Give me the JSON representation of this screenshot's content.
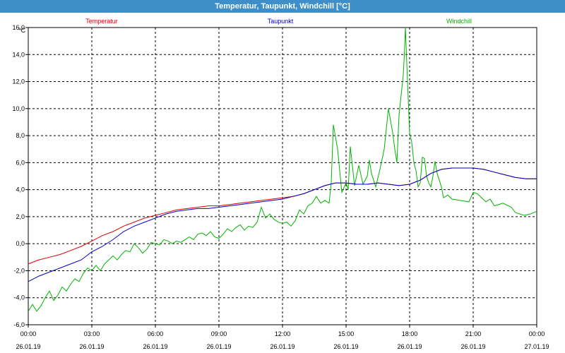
{
  "window": {
    "title": "Temperatur, Taupunkt, Windchill [°C]"
  },
  "colors": {
    "temperatur": "#dd0000",
    "taupunkt": "#0000cc",
    "windchill": "#00b400",
    "titlebar": "#3d8ec9"
  },
  "chart_data": {
    "type": "line",
    "title": "Temperatur, Taupunkt, Windchill [°C]",
    "yunit": "°C",
    "ylim": [
      -6.0,
      16.0
    ],
    "yticks": [
      "-6,0",
      "-4,0",
      "-2,0",
      "0,0",
      "2,0",
      "4,0",
      "6,0",
      "8,0",
      "10,0",
      "12,0",
      "14,0",
      "16,0"
    ],
    "xlim": [
      "26.01.19 00:00",
      "27.01.19 00:00"
    ],
    "xticks": [
      {
        "time": "00:00",
        "date": "26.01.19"
      },
      {
        "time": "03:00",
        "date": "26.01.19"
      },
      {
        "time": "06:00",
        "date": "26.01.19"
      },
      {
        "time": "09:00",
        "date": "26.01.19"
      },
      {
        "time": "12:00",
        "date": "26.01.19"
      },
      {
        "time": "15:00",
        "date": "26.01.19"
      },
      {
        "time": "18:00",
        "date": "26.01.19"
      },
      {
        "time": "21:00",
        "date": "26.01.19"
      },
      {
        "time": "00:00",
        "date": "27.01.19"
      }
    ],
    "grid": true,
    "legend": "top",
    "series": [
      {
        "name": "Temperatur",
        "color": "#dd0000",
        "points": [
          [
            0,
            -1.5
          ],
          [
            0.5,
            -1.2
          ],
          [
            1,
            -1
          ],
          [
            1.5,
            -0.8
          ],
          [
            2,
            -0.5
          ],
          [
            2.5,
            -0.2
          ],
          [
            3,
            0.2
          ],
          [
            3.5,
            0.6
          ],
          [
            4,
            0.9
          ],
          [
            4.5,
            1.3
          ],
          [
            5,
            1.6
          ],
          [
            5.5,
            1.9
          ],
          [
            6,
            2.1
          ],
          [
            6.5,
            2.3
          ],
          [
            7,
            2.5
          ],
          [
            7.5,
            2.6
          ],
          [
            8,
            2.7
          ],
          [
            8.5,
            2.8
          ],
          [
            9,
            2.8
          ],
          [
            9.5,
            2.9
          ],
          [
            10,
            3
          ],
          [
            10.5,
            3.1
          ],
          [
            11,
            3.2
          ],
          [
            11.5,
            3.3
          ],
          [
            12,
            3.4
          ],
          [
            12.5,
            3.5
          ],
          [
            13,
            3.7
          ],
          [
            13.5,
            4
          ],
          [
            14,
            4.3
          ],
          [
            14.5,
            4.5
          ],
          [
            15,
            4.5
          ],
          [
            15.5,
            4.4
          ],
          [
            16,
            4.4
          ],
          [
            16.5,
            4.5
          ],
          [
            17,
            4.4
          ],
          [
            17.5,
            4.3
          ],
          [
            18,
            4.4
          ],
          [
            18.5,
            4.7
          ],
          [
            19,
            5.2
          ],
          [
            19.5,
            5.5
          ],
          [
            20,
            5.6
          ],
          [
            20.5,
            5.6
          ],
          [
            21,
            5.6
          ],
          [
            21.5,
            5.5
          ],
          [
            22,
            5.3
          ],
          [
            22.5,
            5.1
          ],
          [
            23,
            4.9
          ],
          [
            23.5,
            4.8
          ],
          [
            24,
            4.8
          ]
        ]
      },
      {
        "name": "Taupunkt",
        "color": "#0000cc",
        "points": [
          [
            0,
            -2.8
          ],
          [
            0.5,
            -2.4
          ],
          [
            1,
            -2.1
          ],
          [
            1.5,
            -1.8
          ],
          [
            2,
            -1.5
          ],
          [
            2.5,
            -1.2
          ],
          [
            3,
            -0.6
          ],
          [
            3.5,
            -0.2
          ],
          [
            4,
            0.3
          ],
          [
            4.5,
            0.9
          ],
          [
            5,
            1.3
          ],
          [
            5.5,
            1.6
          ],
          [
            6,
            1.9
          ],
          [
            6.5,
            2.2
          ],
          [
            7,
            2.4
          ],
          [
            7.5,
            2.5
          ],
          [
            8,
            2.6
          ],
          [
            8.5,
            2.6
          ],
          [
            9,
            2.7
          ],
          [
            9.5,
            2.8
          ],
          [
            10,
            2.9
          ],
          [
            10.5,
            3
          ],
          [
            11,
            3.1
          ],
          [
            11.5,
            3.2
          ],
          [
            12,
            3.3
          ],
          [
            12.5,
            3.5
          ],
          [
            13,
            3.7
          ],
          [
            13.5,
            4
          ],
          [
            14,
            4.3
          ],
          [
            14.5,
            4.5
          ],
          [
            15,
            4.5
          ],
          [
            15.5,
            4.4
          ],
          [
            16,
            4.4
          ],
          [
            16.5,
            4.5
          ],
          [
            17,
            4.4
          ],
          [
            17.5,
            4.3
          ],
          [
            18,
            4.4
          ],
          [
            18.5,
            4.7
          ],
          [
            19,
            5.2
          ],
          [
            19.5,
            5.5
          ],
          [
            20,
            5.6
          ],
          [
            20.5,
            5.6
          ],
          [
            21,
            5.6
          ],
          [
            21.5,
            5.5
          ],
          [
            22,
            5.3
          ],
          [
            22.5,
            5.1
          ],
          [
            23,
            4.9
          ],
          [
            23.5,
            4.8
          ],
          [
            24,
            4.8
          ]
        ]
      },
      {
        "name": "Windchill",
        "color": "#00b400",
        "points": [
          [
            0,
            -5
          ],
          [
            0.2,
            -4.5
          ],
          [
            0.4,
            -5
          ],
          [
            0.6,
            -4.6
          ],
          [
            0.8,
            -4
          ],
          [
            1,
            -3.5
          ],
          [
            1.2,
            -4.2
          ],
          [
            1.4,
            -3.8
          ],
          [
            1.6,
            -3.2
          ],
          [
            1.8,
            -3.5
          ],
          [
            2,
            -3
          ],
          [
            2.2,
            -2.6
          ],
          [
            2.4,
            -2.8
          ],
          [
            2.6,
            -2.2
          ],
          [
            2.8,
            -1.8
          ],
          [
            3,
            -2
          ],
          [
            3.2,
            -1.6
          ],
          [
            3.4,
            -2
          ],
          [
            3.6,
            -1.5
          ],
          [
            3.8,
            -1.2
          ],
          [
            4,
            -0.9
          ],
          [
            4.2,
            -1.2
          ],
          [
            4.4,
            -0.8
          ],
          [
            4.6,
            -0.5
          ],
          [
            4.8,
            -0.6
          ],
          [
            5,
            0
          ],
          [
            5.2,
            -0.3
          ],
          [
            5.4,
            -0.7
          ],
          [
            5.6,
            -0.4
          ],
          [
            5.8,
            0.1
          ],
          [
            6,
            0
          ],
          [
            6.2,
            -0.1
          ],
          [
            6.4,
            0.3
          ],
          [
            6.6,
            0.2
          ],
          [
            6.8,
            0
          ],
          [
            7,
            0.2
          ],
          [
            7.2,
            0.1
          ],
          [
            7.4,
            0.3
          ],
          [
            7.6,
            0.5
          ],
          [
            7.8,
            0.3
          ],
          [
            8,
            0.7
          ],
          [
            8.2,
            0.8
          ],
          [
            8.4,
            0.6
          ],
          [
            8.6,
            0.9
          ],
          [
            8.8,
            0.5
          ],
          [
            9,
            0.4
          ],
          [
            9.2,
            0.7
          ],
          [
            9.4,
            1.1
          ],
          [
            9.6,
            0.9
          ],
          [
            9.8,
            1.2
          ],
          [
            10,
            1.4
          ],
          [
            10.2,
            1
          ],
          [
            10.4,
            1.3
          ],
          [
            10.6,
            1.2
          ],
          [
            10.8,
            1.6
          ],
          [
            11,
            2.7
          ],
          [
            11.2,
            1.9
          ],
          [
            11.4,
            2.2
          ],
          [
            11.6,
            1.8
          ],
          [
            11.8,
            1.6
          ],
          [
            12,
            1.5
          ],
          [
            12.2,
            1.6
          ],
          [
            12.4,
            1.3
          ],
          [
            12.6,
            1.7
          ],
          [
            12.8,
            2.5
          ],
          [
            13,
            2.2
          ],
          [
            13.2,
            2.8
          ],
          [
            13.4,
            3
          ],
          [
            13.6,
            3.5
          ],
          [
            13.8,
            3
          ],
          [
            14,
            3.2
          ],
          [
            14.2,
            3
          ],
          [
            14.3,
            4.5
          ],
          [
            14.4,
            8.8
          ],
          [
            14.6,
            7
          ],
          [
            14.8,
            3.8
          ],
          [
            15,
            4.5
          ],
          [
            15.1,
            4
          ],
          [
            15.2,
            7.2
          ],
          [
            15.4,
            4.3
          ],
          [
            15.6,
            5.8
          ],
          [
            15.8,
            4.4
          ],
          [
            16,
            5
          ],
          [
            16.1,
            6.2
          ],
          [
            16.2,
            5.2
          ],
          [
            16.4,
            4.2
          ],
          [
            16.6,
            5.5
          ],
          [
            16.8,
            7
          ],
          [
            17,
            10
          ],
          [
            17.2,
            8.2
          ],
          [
            17.3,
            7
          ],
          [
            17.4,
            6
          ],
          [
            17.5,
            9.5
          ],
          [
            17.6,
            11
          ],
          [
            17.7,
            12.5
          ],
          [
            17.75,
            14
          ],
          [
            17.8,
            16
          ],
          [
            17.9,
            12
          ],
          [
            18,
            8.2
          ],
          [
            18.1,
            7.5
          ],
          [
            18.2,
            6
          ],
          [
            18.3,
            5.4
          ],
          [
            18.4,
            4.2
          ],
          [
            18.5,
            4.5
          ],
          [
            18.6,
            6.4
          ],
          [
            18.7,
            6.3
          ],
          [
            18.8,
            5
          ],
          [
            18.9,
            4.5
          ],
          [
            19,
            4.2
          ],
          [
            19.1,
            5
          ],
          [
            19.2,
            6.1
          ],
          [
            19.3,
            5.2
          ],
          [
            19.5,
            4.2
          ],
          [
            19.6,
            3.4
          ],
          [
            19.8,
            3.6
          ],
          [
            20,
            3.3
          ],
          [
            20.4,
            3.2
          ],
          [
            20.8,
            3.1
          ],
          [
            21,
            3.8
          ],
          [
            21.2,
            3.7
          ],
          [
            21.4,
            3.4
          ],
          [
            21.6,
            3.1
          ],
          [
            21.8,
            3.3
          ],
          [
            22,
            2.8
          ],
          [
            22.4,
            3
          ],
          [
            22.8,
            2.7
          ],
          [
            23,
            2.3
          ],
          [
            23.4,
            2.1
          ],
          [
            23.7,
            2.2
          ],
          [
            24,
            2.4
          ]
        ]
      }
    ]
  }
}
